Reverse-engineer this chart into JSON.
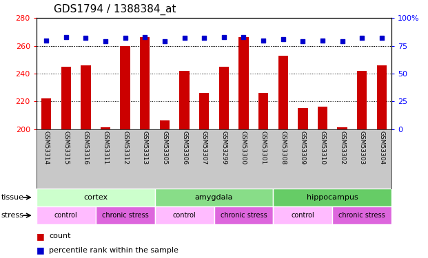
{
  "title": "GDS1794 / 1388384_at",
  "samples": [
    "GSM53314",
    "GSM53315",
    "GSM53316",
    "GSM53311",
    "GSM53312",
    "GSM53313",
    "GSM53305",
    "GSM53306",
    "GSM53307",
    "GSM53299",
    "GSM53300",
    "GSM53301",
    "GSM53308",
    "GSM53309",
    "GSM53310",
    "GSM53302",
    "GSM53303",
    "GSM53304"
  ],
  "counts": [
    222,
    245,
    246,
    201,
    260,
    266,
    206,
    242,
    226,
    245,
    266,
    226,
    253,
    215,
    216,
    201,
    242,
    246
  ],
  "percentiles": [
    80,
    83,
    82,
    79,
    82,
    83,
    79,
    82,
    82,
    83,
    83,
    80,
    81,
    79,
    80,
    79,
    82,
    82
  ],
  "ylim_left": [
    200,
    280
  ],
  "ylim_right": [
    0,
    100
  ],
  "yticks_left": [
    200,
    220,
    240,
    260,
    280
  ],
  "yticks_right": [
    0,
    25,
    50,
    75,
    100
  ],
  "bar_color": "#cc0000",
  "dot_color": "#0000cc",
  "tissue_groups": [
    {
      "label": "cortex",
      "start": 0,
      "end": 6,
      "color": "#ccffcc"
    },
    {
      "label": "amygdala",
      "start": 6,
      "end": 12,
      "color": "#88dd88"
    },
    {
      "label": "hippocampus",
      "start": 12,
      "end": 18,
      "color": "#66cc66"
    }
  ],
  "stress_groups": [
    {
      "label": "control",
      "start": 0,
      "end": 3,
      "color": "#ffbbff"
    },
    {
      "label": "chronic stress",
      "start": 3,
      "end": 6,
      "color": "#dd66dd"
    },
    {
      "label": "control",
      "start": 6,
      "end": 9,
      "color": "#ffbbff"
    },
    {
      "label": "chronic stress",
      "start": 9,
      "end": 12,
      "color": "#dd66dd"
    },
    {
      "label": "control",
      "start": 12,
      "end": 15,
      "color": "#ffbbff"
    },
    {
      "label": "chronic stress",
      "start": 15,
      "end": 18,
      "color": "#dd66dd"
    }
  ],
  "legend_count_label": "count",
  "legend_percentile_label": "percentile rank within the sample",
  "xlabel_bg_color": "#c8c8c8",
  "bar_width": 0.5
}
